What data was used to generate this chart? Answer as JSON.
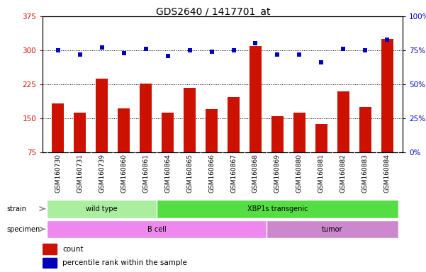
{
  "title": "GDS2640 / 1417701_at",
  "samples": [
    "GSM160730",
    "GSM160731",
    "GSM160739",
    "GSM160860",
    "GSM160861",
    "GSM160864",
    "GSM160865",
    "GSM160866",
    "GSM160867",
    "GSM160868",
    "GSM160869",
    "GSM160880",
    "GSM160881",
    "GSM160882",
    "GSM160883",
    "GSM160884"
  ],
  "counts": [
    183,
    163,
    237,
    172,
    227,
    162,
    217,
    170,
    197,
    310,
    155,
    163,
    138,
    210,
    175,
    325
  ],
  "percentiles": [
    75,
    72,
    77,
    73,
    76,
    71,
    75,
    74,
    75,
    80,
    72,
    72,
    66,
    76,
    75,
    83
  ],
  "ylim_left": [
    75,
    375
  ],
  "ylim_right": [
    0,
    100
  ],
  "yticks_left": [
    75,
    150,
    225,
    300,
    375
  ],
  "yticks_right": [
    0,
    25,
    50,
    75,
    100
  ],
  "ytick_labels_right": [
    "0%",
    "25%",
    "50%",
    "75%",
    "100%"
  ],
  "bar_color": "#cc1100",
  "dot_color": "#0000bb",
  "hline_values": [
    150,
    225,
    300
  ],
  "strain_groups": [
    {
      "label": "wild type",
      "start": 0,
      "end": 5,
      "color": "#aaeea0"
    },
    {
      "label": "XBP1s transgenic",
      "start": 5,
      "end": 16,
      "color": "#55dd44"
    }
  ],
  "specimen_groups": [
    {
      "label": "B cell",
      "start": 0,
      "end": 10,
      "color": "#ee88ee"
    },
    {
      "label": "tumor",
      "start": 10,
      "end": 16,
      "color": "#cc88cc"
    }
  ],
  "strain_label": "strain",
  "specimen_label": "specimen",
  "legend_count_label": "count",
  "legend_pct_label": "percentile rank within the sample",
  "background_color": "#ffffff",
  "plot_bg": "#ffffff",
  "tick_area_bg": "#cccccc",
  "title_fontsize": 10,
  "tick_fontsize": 6.5,
  "label_fontsize": 8
}
